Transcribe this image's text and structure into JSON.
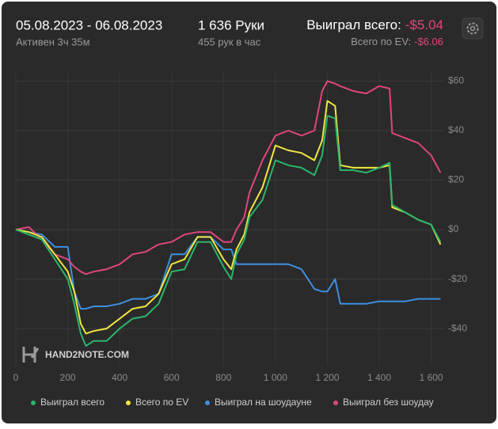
{
  "header": {
    "date_range": "05.08.2023 - 06.08.2023",
    "active": "Активен 3ч 35м",
    "hands": "1 636 Руки",
    "hands_per_hour": "455 рук в час",
    "won_label": "Выиграл всего:",
    "won_value": "-$5.04",
    "ev_label": "Всего по EV:",
    "ev_value": "-$6.06"
  },
  "logo": "HAND2NOTE.COM",
  "chart_data": {
    "type": "line",
    "x": [
      0,
      50,
      100,
      150,
      200,
      225,
      250,
      270,
      300,
      350,
      400,
      450,
      500,
      550,
      600,
      650,
      700,
      750,
      800,
      830,
      850,
      880,
      900,
      950,
      1000,
      1050,
      1100,
      1150,
      1180,
      1200,
      1230,
      1250,
      1300,
      1350,
      1400,
      1440,
      1450,
      1500,
      1550,
      1600,
      1636
    ],
    "series": [
      {
        "name": "Выиграл всего",
        "color": "#2bb56b",
        "values": [
          0,
          -2,
          -4,
          -12,
          -20,
          -30,
          -42,
          -47,
          -45,
          -45,
          -40,
          -36,
          -35,
          -30,
          -17,
          -16,
          -5,
          -5,
          -15,
          -20,
          -10,
          -4,
          5,
          12,
          28,
          26,
          25,
          22,
          30,
          46,
          45,
          24,
          24,
          23,
          25,
          27,
          10,
          7,
          4,
          2,
          -5
        ]
      },
      {
        "name": "Всего по EV",
        "color": "#f2e640",
        "values": [
          0,
          -1,
          -3,
          -10,
          -17,
          -25,
          -38,
          -42,
          -41,
          -40,
          -36,
          -32,
          -31,
          -26,
          -14,
          -12,
          -3,
          -3,
          -12,
          -16,
          -8,
          -2,
          7,
          17,
          34,
          32,
          31,
          28,
          36,
          52,
          50,
          26,
          25,
          25,
          25,
          26,
          9,
          7,
          4,
          2,
          -6
        ]
      },
      {
        "name": "Выиграл на шоудауне",
        "color": "#3d8fe0",
        "values": [
          0,
          -1,
          -2,
          -7,
          -7,
          -25,
          -32,
          -32,
          -31,
          -31,
          -30,
          -28,
          -28,
          -26,
          -10,
          -10,
          -3,
          -3,
          -8,
          -8,
          -14,
          -14,
          -14,
          -14,
          -14,
          -14,
          -16,
          -24,
          -25,
          -25,
          -20,
          -30,
          -30,
          -30,
          -29,
          -29,
          -29,
          -29,
          -28,
          -28,
          -28
        ]
      },
      {
        "name": "Выиграл без шоудау",
        "color": "#e0457c",
        "values": [
          0,
          1,
          -4,
          -10,
          -12,
          -15,
          -17,
          -18,
          -17,
          -16,
          -14,
          -10,
          -9,
          -6,
          -5,
          -2,
          -1,
          -1,
          -5,
          -5,
          0,
          5,
          15,
          28,
          38,
          40,
          38,
          40,
          56,
          60,
          59,
          58,
          56,
          55,
          58,
          57,
          39,
          37,
          35,
          30,
          23
        ]
      }
    ],
    "xlim": [
      0,
      1650
    ],
    "xticks": [
      0,
      200,
      400,
      600,
      800,
      {
        "value": 1000,
        "label": "1 000"
      },
      {
        "value": 1200,
        "label": "1 200"
      },
      {
        "value": 1400,
        "label": "1 400"
      },
      {
        "value": 1600,
        "label": "1 600"
      }
    ],
    "ylim": [
      -55,
      64
    ],
    "yticks": [
      {
        "value": 60,
        "label": "$60"
      },
      {
        "value": 40,
        "label": "$40"
      },
      {
        "value": 20,
        "label": "$20"
      },
      {
        "value": 0,
        "label": "$0"
      },
      {
        "value": -20,
        "label": "-$20"
      },
      {
        "value": -40,
        "label": "-$40"
      }
    ],
    "grid": true
  }
}
